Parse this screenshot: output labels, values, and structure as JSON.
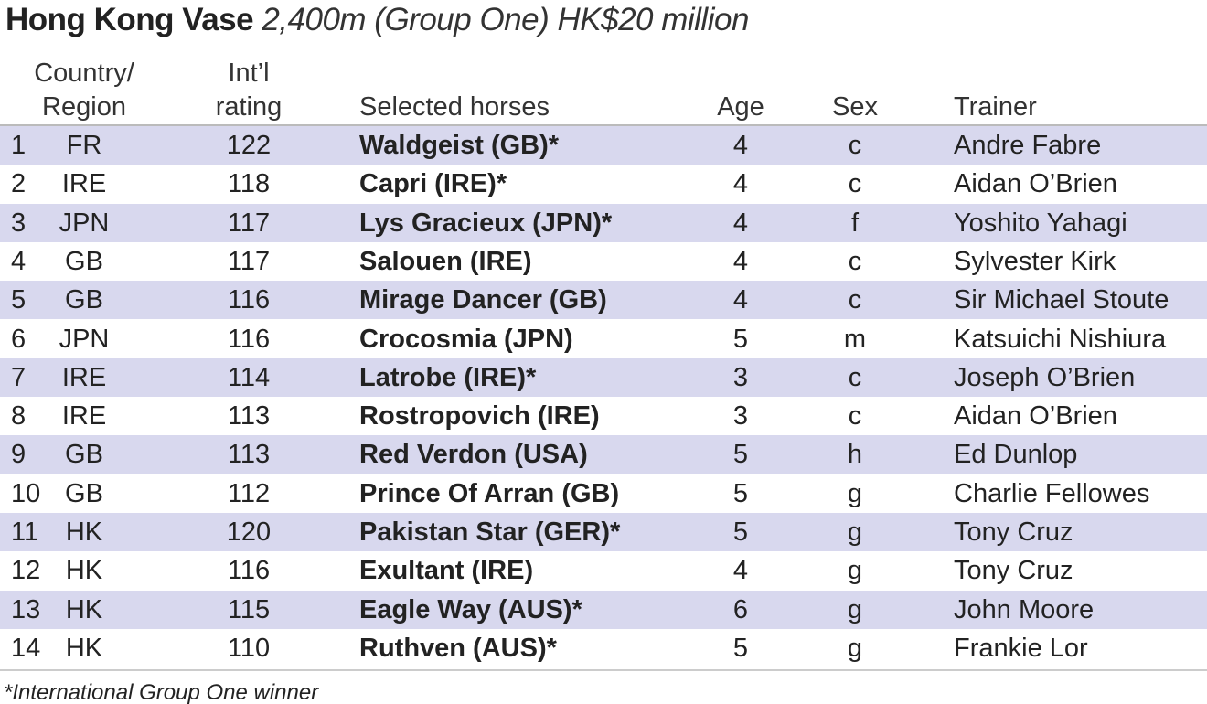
{
  "title": {
    "main": "Hong Kong Vase",
    "detail": "2,400m (Group One) HK$20 million"
  },
  "table": {
    "header": [
      [
        "Country/",
        "Region"
      ],
      [
        "Int’l",
        "rating"
      ],
      [
        "Selected horses"
      ],
      [
        "Age"
      ],
      [
        "Sex"
      ],
      [
        "Trainer"
      ]
    ],
    "rows": [
      [
        1,
        "FR",
        122,
        "Waldgeist (GB)*",
        4,
        "c",
        "Andre Fabre"
      ],
      [
        2,
        "IRE",
        118,
        "Capri (IRE)*",
        4,
        "c",
        "Aidan O’Brien"
      ],
      [
        3,
        "JPN",
        117,
        "Lys Gracieux (JPN)*",
        4,
        "f",
        "Yoshito Yahagi"
      ],
      [
        4,
        "GB",
        117,
        "Salouen (IRE)",
        4,
        "c",
        "Sylvester Kirk"
      ],
      [
        5,
        "GB",
        116,
        "Mirage Dancer (GB)",
        4,
        "c",
        "Sir Michael Stoute"
      ],
      [
        6,
        "JPN",
        116,
        "Crocosmia (JPN)",
        5,
        "m",
        "Katsuichi Nishiura"
      ],
      [
        7,
        "IRE",
        114,
        "Latrobe (IRE)*",
        3,
        "c",
        "Joseph O’Brien"
      ],
      [
        8,
        "IRE",
        113,
        "Rostropovich (IRE)",
        3,
        "c",
        "Aidan O’Brien"
      ],
      [
        9,
        "GB",
        113,
        "Red Verdon (USA)",
        5,
        "h",
        "Ed Dunlop"
      ],
      [
        10,
        "GB",
        112,
        "Prince Of Arran (GB)",
        5,
        "g",
        "Charlie Fellowes"
      ],
      [
        11,
        "HK",
        120,
        "Pakistan Star (GER)*",
        5,
        "g",
        "Tony Cruz"
      ],
      [
        12,
        "HK",
        116,
        "Exultant (IRE)",
        4,
        "g",
        "Tony Cruz"
      ],
      [
        13,
        "HK",
        115,
        "Eagle Way (AUS)*",
        6,
        "g",
        "John Moore"
      ],
      [
        14,
        "HK",
        110,
        "Ruthven (AUS)*",
        5,
        "g",
        "Frankie Lor"
      ]
    ]
  },
  "footnote": "*International Group One winner"
}
